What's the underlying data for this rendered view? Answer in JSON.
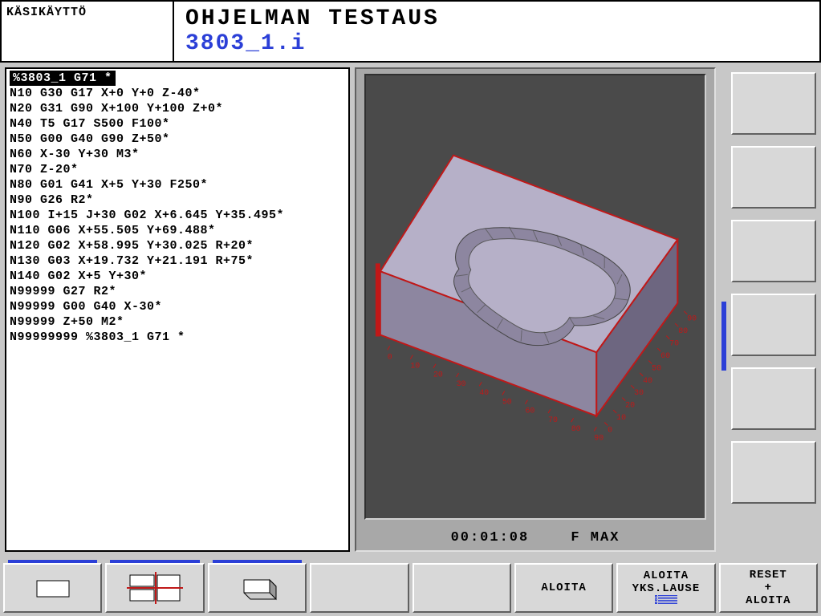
{
  "header": {
    "mode": "KÄSIKÄYTTÖ",
    "title": "OHJELMAN TESTAUS",
    "file": "3803_1.i"
  },
  "colors": {
    "accent": "#2b3fd7",
    "panel_bg": "#c8c8c8",
    "gfx_bg": "#4a4a4a",
    "solid_top": "#b6b0c8",
    "solid_front": "#8d86a0",
    "solid_side": "#6d6680",
    "outline": "#c01818",
    "axis_text": "#c01818"
  },
  "nc": {
    "selected_index": 0,
    "lines": [
      "%3803_1 G71 *",
      "N10 G30 G17 X+0 Y+0 Z-40*",
      "N20 G31 G90 X+100 Y+100 Z+0*",
      "N40 T5 G17 S500 F100*",
      "N50 G00 G40 G90 Z+50*",
      "N60 X-30 Y+30 M3*",
      "N70 Z-20*",
      "N80 G01 G41 X+5 Y+30 F250*",
      "N90 G26 R2*",
      "N100 I+15 J+30 G02 X+6.645 Y+35.495*",
      "N110 G06 X+55.505 Y+69.488*",
      "N120 G02 X+58.995 Y+30.025 R+20*",
      "N130 G03 X+19.732 Y+21.191 R+75*",
      "N140 G02 X+5 Y+30*",
      "N99999 G27 R2*",
      "N99999 G00 G40 X-30*",
      "N99999 Z+50 M2*",
      "N99999999 %3803_1 G71 *"
    ]
  },
  "graphics": {
    "time": "00:01:08",
    "feed": "F MAX",
    "axis_ticks": [
      "0",
      "10",
      "20",
      "30",
      "40",
      "50",
      "60",
      "70",
      "80",
      "90"
    ]
  },
  "softkeys": {
    "right": [
      {
        "label": ""
      },
      {
        "label": ""
      },
      {
        "label": ""
      },
      {
        "label": ""
      },
      {
        "label": ""
      },
      {
        "label": ""
      }
    ],
    "bottom": [
      {
        "type": "view-plan",
        "label": ""
      },
      {
        "type": "view-3side",
        "label": ""
      },
      {
        "type": "view-solid",
        "label": ""
      },
      {
        "type": "blank",
        "label": ""
      },
      {
        "type": "blank",
        "label": ""
      },
      {
        "type": "text",
        "label": "ALOITA"
      },
      {
        "type": "text2",
        "line1": "ALOITA",
        "line2": "YKS.LAUSE",
        "extra": "rows"
      },
      {
        "type": "text3",
        "line1": "RESET",
        "line2": "+",
        "line3": "ALOITA"
      }
    ]
  }
}
